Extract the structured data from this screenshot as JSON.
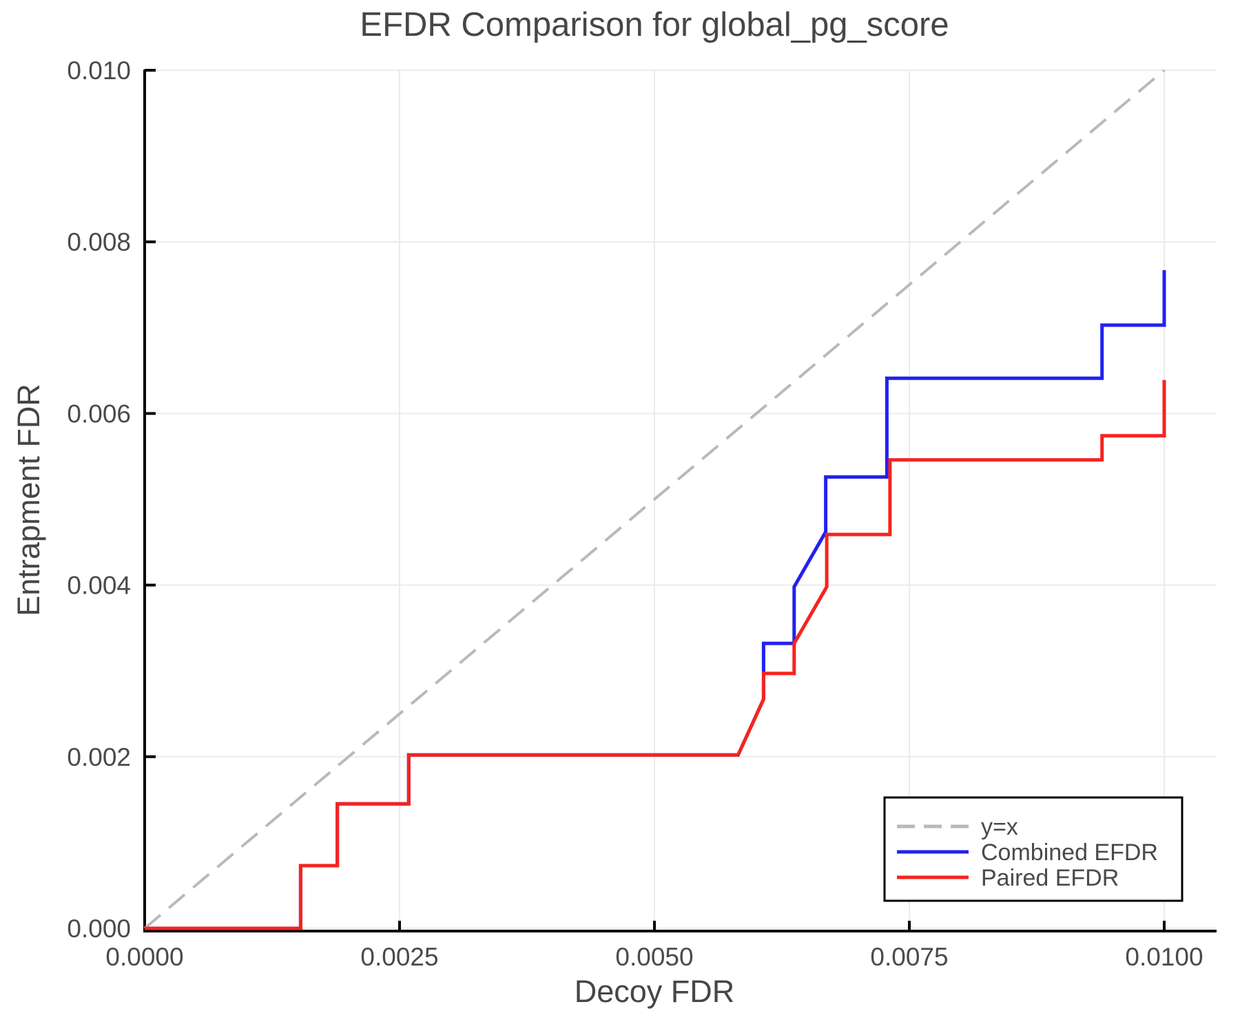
{
  "chart_data": {
    "type": "line",
    "title": "EFDR Comparison for global_pg_score",
    "xlabel": "Decoy FDR",
    "ylabel": "Entrapment FDR",
    "xlim": [
      0,
      0.0105
    ],
    "ylim": [
      0,
      0.01
    ],
    "grid": true,
    "legend_position": "lower-right",
    "x_ticks": {
      "values": [
        0,
        0.0025,
        0.005,
        0.0075,
        0.01
      ],
      "labels": [
        "0.0000",
        "0.0025",
        "0.0050",
        "0.0075",
        "0.0100"
      ]
    },
    "y_ticks": {
      "values": [
        0,
        0.002,
        0.004,
        0.006,
        0.008,
        0.01
      ],
      "labels": [
        "0.000",
        "0.002",
        "0.004",
        "0.006",
        "0.008",
        "0.010"
      ]
    },
    "series": [
      {
        "name": "y=x",
        "role": "reference",
        "line_style": "dashed",
        "color": "#b9b9b9",
        "points": [
          [
            0,
            0
          ],
          [
            0.01,
            0.01
          ]
        ]
      },
      {
        "name": "Combined EFDR",
        "role": "data",
        "line_style": "solid",
        "color": "#2222ef",
        "points": [
          [
            0,
            0
          ],
          [
            0.00153,
            0
          ],
          [
            0.00153,
            0.00073
          ],
          [
            0.00189,
            0.00073
          ],
          [
            0.00189,
            0.00145
          ],
          [
            0.00259,
            0.00145
          ],
          [
            0.00259,
            0.00202
          ],
          [
            0.00582,
            0.00202
          ],
          [
            0.00607,
            0.00267
          ],
          [
            0.00607,
            0.00332
          ],
          [
            0.00637,
            0.00332
          ],
          [
            0.00637,
            0.00398
          ],
          [
            0.00668,
            0.00462
          ],
          [
            0.00668,
            0.00526
          ],
          [
            0.00728,
            0.00526
          ],
          [
            0.00728,
            0.00641
          ],
          [
            0.00939,
            0.00641
          ],
          [
            0.00939,
            0.00703
          ],
          [
            0.01,
            0.00703
          ],
          [
            0.01,
            0.00767
          ]
        ]
      },
      {
        "name": "Paired EFDR",
        "role": "data",
        "line_style": "solid",
        "color": "#f42420",
        "points": [
          [
            0,
            0
          ],
          [
            0.00153,
            0
          ],
          [
            0.00153,
            0.00073
          ],
          [
            0.00189,
            0.00073
          ],
          [
            0.00189,
            0.00145
          ],
          [
            0.00259,
            0.00145
          ],
          [
            0.00259,
            0.00202
          ],
          [
            0.00582,
            0.00202
          ],
          [
            0.00607,
            0.00267
          ],
          [
            0.00607,
            0.00297
          ],
          [
            0.00637,
            0.00297
          ],
          [
            0.00637,
            0.00332
          ],
          [
            0.00669,
            0.00398
          ],
          [
            0.00669,
            0.00459
          ],
          [
            0.00731,
            0.00459
          ],
          [
            0.00731,
            0.00546
          ],
          [
            0.00939,
            0.00546
          ],
          [
            0.00939,
            0.00574
          ],
          [
            0.01,
            0.00574
          ],
          [
            0.01,
            0.00639
          ]
        ]
      }
    ],
    "colors": {
      "background": "#ffffff",
      "grid": "#ebebeb",
      "spine": "#000000",
      "text": "#4a4a4a"
    }
  }
}
